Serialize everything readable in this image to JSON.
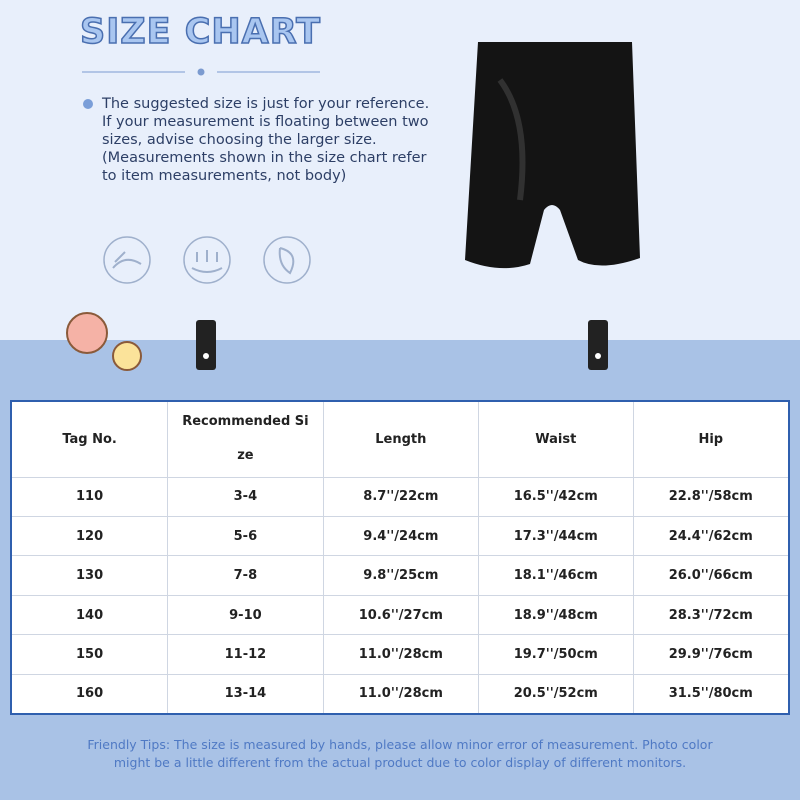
{
  "header": {
    "title": "SIZE CHART",
    "note": "The suggested size is just for your reference. If your measurement is floating between two sizes, advise choosing the larger size. (Measurements shown in the size chart refer to item measurements, not body)"
  },
  "table": {
    "columns": [
      "Tag No.",
      "Recommended Size",
      "Length",
      "Waist",
      "Hip"
    ],
    "rows": [
      [
        "110",
        "3-4",
        "8.7''/22cm",
        "16.5''/42cm",
        "22.8''/58cm"
      ],
      [
        "120",
        "5-6",
        "9.4''/24cm",
        "17.3''/44cm",
        "24.4''/62cm"
      ],
      [
        "130",
        "7-8",
        "9.8''/25cm",
        "18.1''/46cm",
        "26.0''/66cm"
      ],
      [
        "140",
        "9-10",
        "10.6''/27cm",
        "18.9''/48cm",
        "28.3''/72cm"
      ],
      [
        "150",
        "11-12",
        "11.0''/28cm",
        "19.7''/50cm",
        "29.9''/76cm"
      ],
      [
        "160",
        "13-14",
        "11.0''/28cm",
        "20.5''/52cm",
        "31.5''/80cm"
      ]
    ]
  },
  "footer": {
    "tips": "Friendly Tips: The size is measured by hands, please allow minor error of measurement. Photo color might be a little different from the actual product due to color display of different monitors."
  }
}
